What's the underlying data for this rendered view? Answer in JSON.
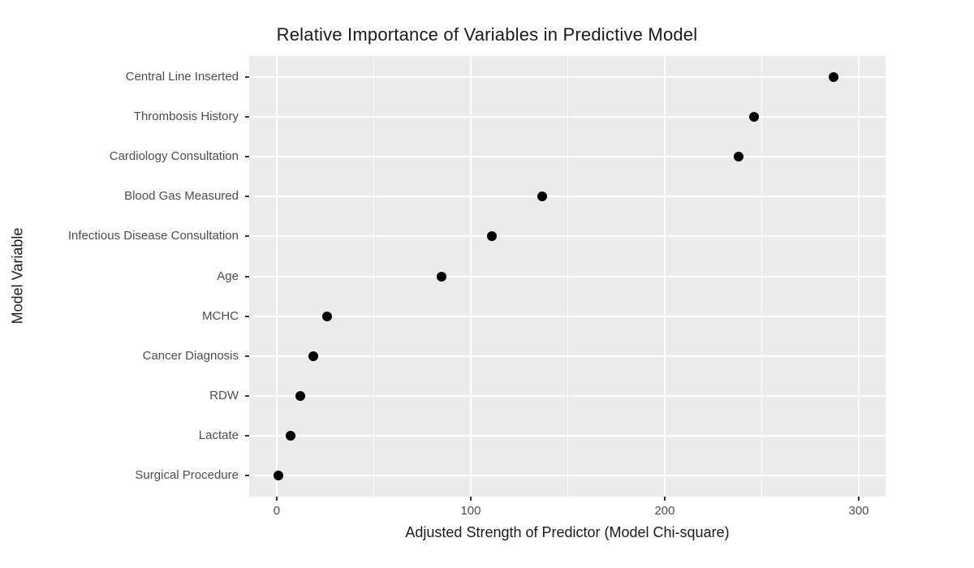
{
  "chart_data": {
    "type": "scatter",
    "subtype": "cleveland-dot-plot",
    "title": "Relative Importance of Variables in Predictive Model",
    "xlabel": "Adjusted Strength of Predictor (Model Chi-square)",
    "ylabel": "Model Variable",
    "categories": [
      "Central Line Inserted",
      "Thrombosis History",
      "Cardiology Consultation",
      "Blood Gas Measured",
      "Infectious Disease Consultation",
      "Age",
      "MCHC",
      "Cancer Diagnosis",
      "RDW",
      "Lactate",
      "Surgical Procedure"
    ],
    "values": [
      287,
      246,
      238,
      137,
      111,
      85,
      26,
      19,
      12,
      7,
      1
    ],
    "xlim": [
      -14.2,
      313.8
    ],
    "x_major_ticks": [
      0,
      100,
      200,
      300
    ],
    "x_minor_ticks": [
      50,
      150,
      250
    ],
    "grid": "white major and minor gridlines on gray panel",
    "legend": "none",
    "colors": {
      "point": "#000000",
      "panel_bg": "#EBEBEB",
      "grid": "#FFFFFF",
      "axis_text": "#4D4D4D",
      "title_text": "#1A1A1A",
      "tick_mark": "#333333"
    }
  }
}
